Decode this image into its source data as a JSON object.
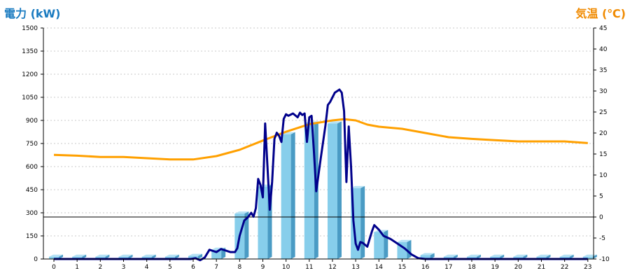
{
  "chart_data": {
    "type": "bar+line",
    "left_axis_title": "電力 (kW)",
    "right_axis_title": "気温 (℃)",
    "left_axis": {
      "min": 0,
      "max": 1500,
      "ticks": [
        0,
        150,
        300,
        450,
        600,
        750,
        900,
        1050,
        1200,
        1350,
        1500
      ]
    },
    "right_axis": {
      "min": -10,
      "max": 45,
      "ticks": [
        -10,
        -5,
        0,
        5,
        10,
        15,
        20,
        25,
        30,
        35,
        40,
        45
      ]
    },
    "x_ticks": [
      "0",
      "1",
      "2",
      "3",
      "4",
      "5",
      "6",
      "7",
      "8",
      "9",
      "10",
      "11",
      "12",
      "13",
      "14",
      "15",
      "16",
      "17",
      "18",
      "19",
      "20",
      "21",
      "22",
      "23"
    ],
    "grid": true,
    "bars": {
      "values": [
        15,
        15,
        15,
        15,
        15,
        15,
        20,
        60,
        295,
        470,
        810,
        880,
        880,
        460,
        175,
        110,
        25,
        15,
        15,
        15,
        15,
        15,
        15,
        15
      ],
      "color": "#87ceeb"
    },
    "power_line": {
      "color": "#00008b",
      "x": [
        0,
        1,
        2,
        3,
        4,
        5,
        5.9,
        6.1,
        6.3,
        6.5,
        6.7,
        6.9,
        7.0,
        7.2,
        7.4,
        7.6,
        7.8,
        7.9,
        8.0,
        8.1,
        8.2,
        8.35,
        8.5,
        8.6,
        8.7,
        8.8,
        8.9,
        9.0,
        9.1,
        9.2,
        9.3,
        9.4,
        9.5,
        9.6,
        9.7,
        9.8,
        9.9,
        10.0,
        10.1,
        10.3,
        10.5,
        10.6,
        10.7,
        10.8,
        10.9,
        11.0,
        11.1,
        11.2,
        11.3,
        11.5,
        11.7,
        11.8,
        11.9,
        12.1,
        12.3,
        12.4,
        12.5,
        12.6,
        12.7,
        12.8,
        12.9,
        13.0,
        13.1,
        13.2,
        13.3,
        13.5,
        13.7,
        13.8,
        14.0,
        14.2,
        14.5,
        14.8,
        15.1,
        15.4,
        15.7,
        16,
        17,
        18,
        19,
        20,
        21,
        22,
        23
      ],
      "y": [
        0,
        0,
        0,
        0,
        0,
        0,
        0,
        5,
        -8,
        10,
        60,
        50,
        45,
        65,
        55,
        45,
        45,
        70,
        150,
        200,
        250,
        270,
        300,
        275,
        330,
        520,
        480,
        400,
        880,
        600,
        320,
        500,
        780,
        820,
        800,
        760,
        910,
        940,
        930,
        945,
        920,
        950,
        935,
        945,
        760,
        920,
        930,
        700,
        440,
        660,
        870,
        1000,
        1020,
        1080,
        1100,
        1080,
        960,
        500,
        860,
        600,
        250,
        100,
        60,
        110,
        105,
        80,
        180,
        220,
        190,
        150,
        130,
        100,
        70,
        30,
        5,
        0,
        0,
        0,
        0,
        0,
        0,
        0,
        0
      ]
    },
    "temperature_line": {
      "color": "#ffa000",
      "x": [
        0,
        1,
        2,
        3,
        4,
        5,
        6,
        7,
        8,
        9,
        10,
        11,
        12,
        12.5,
        13,
        13.5,
        14,
        15,
        16,
        17,
        18,
        19,
        20,
        21,
        22,
        23
      ],
      "y": [
        14.8,
        14.6,
        14.3,
        14.3,
        14.0,
        13.7,
        13.7,
        14.5,
        16.0,
        18.2,
        20.3,
        22.1,
        23.0,
        23.3,
        23.0,
        22.0,
        21.5,
        21.0,
        20.0,
        19.0,
        18.6,
        18.3,
        18.0,
        18.0,
        18.0,
        17.6
      ]
    },
    "reference_line": {
      "axis": "right",
      "value": 0,
      "color": "#000000"
    }
  }
}
